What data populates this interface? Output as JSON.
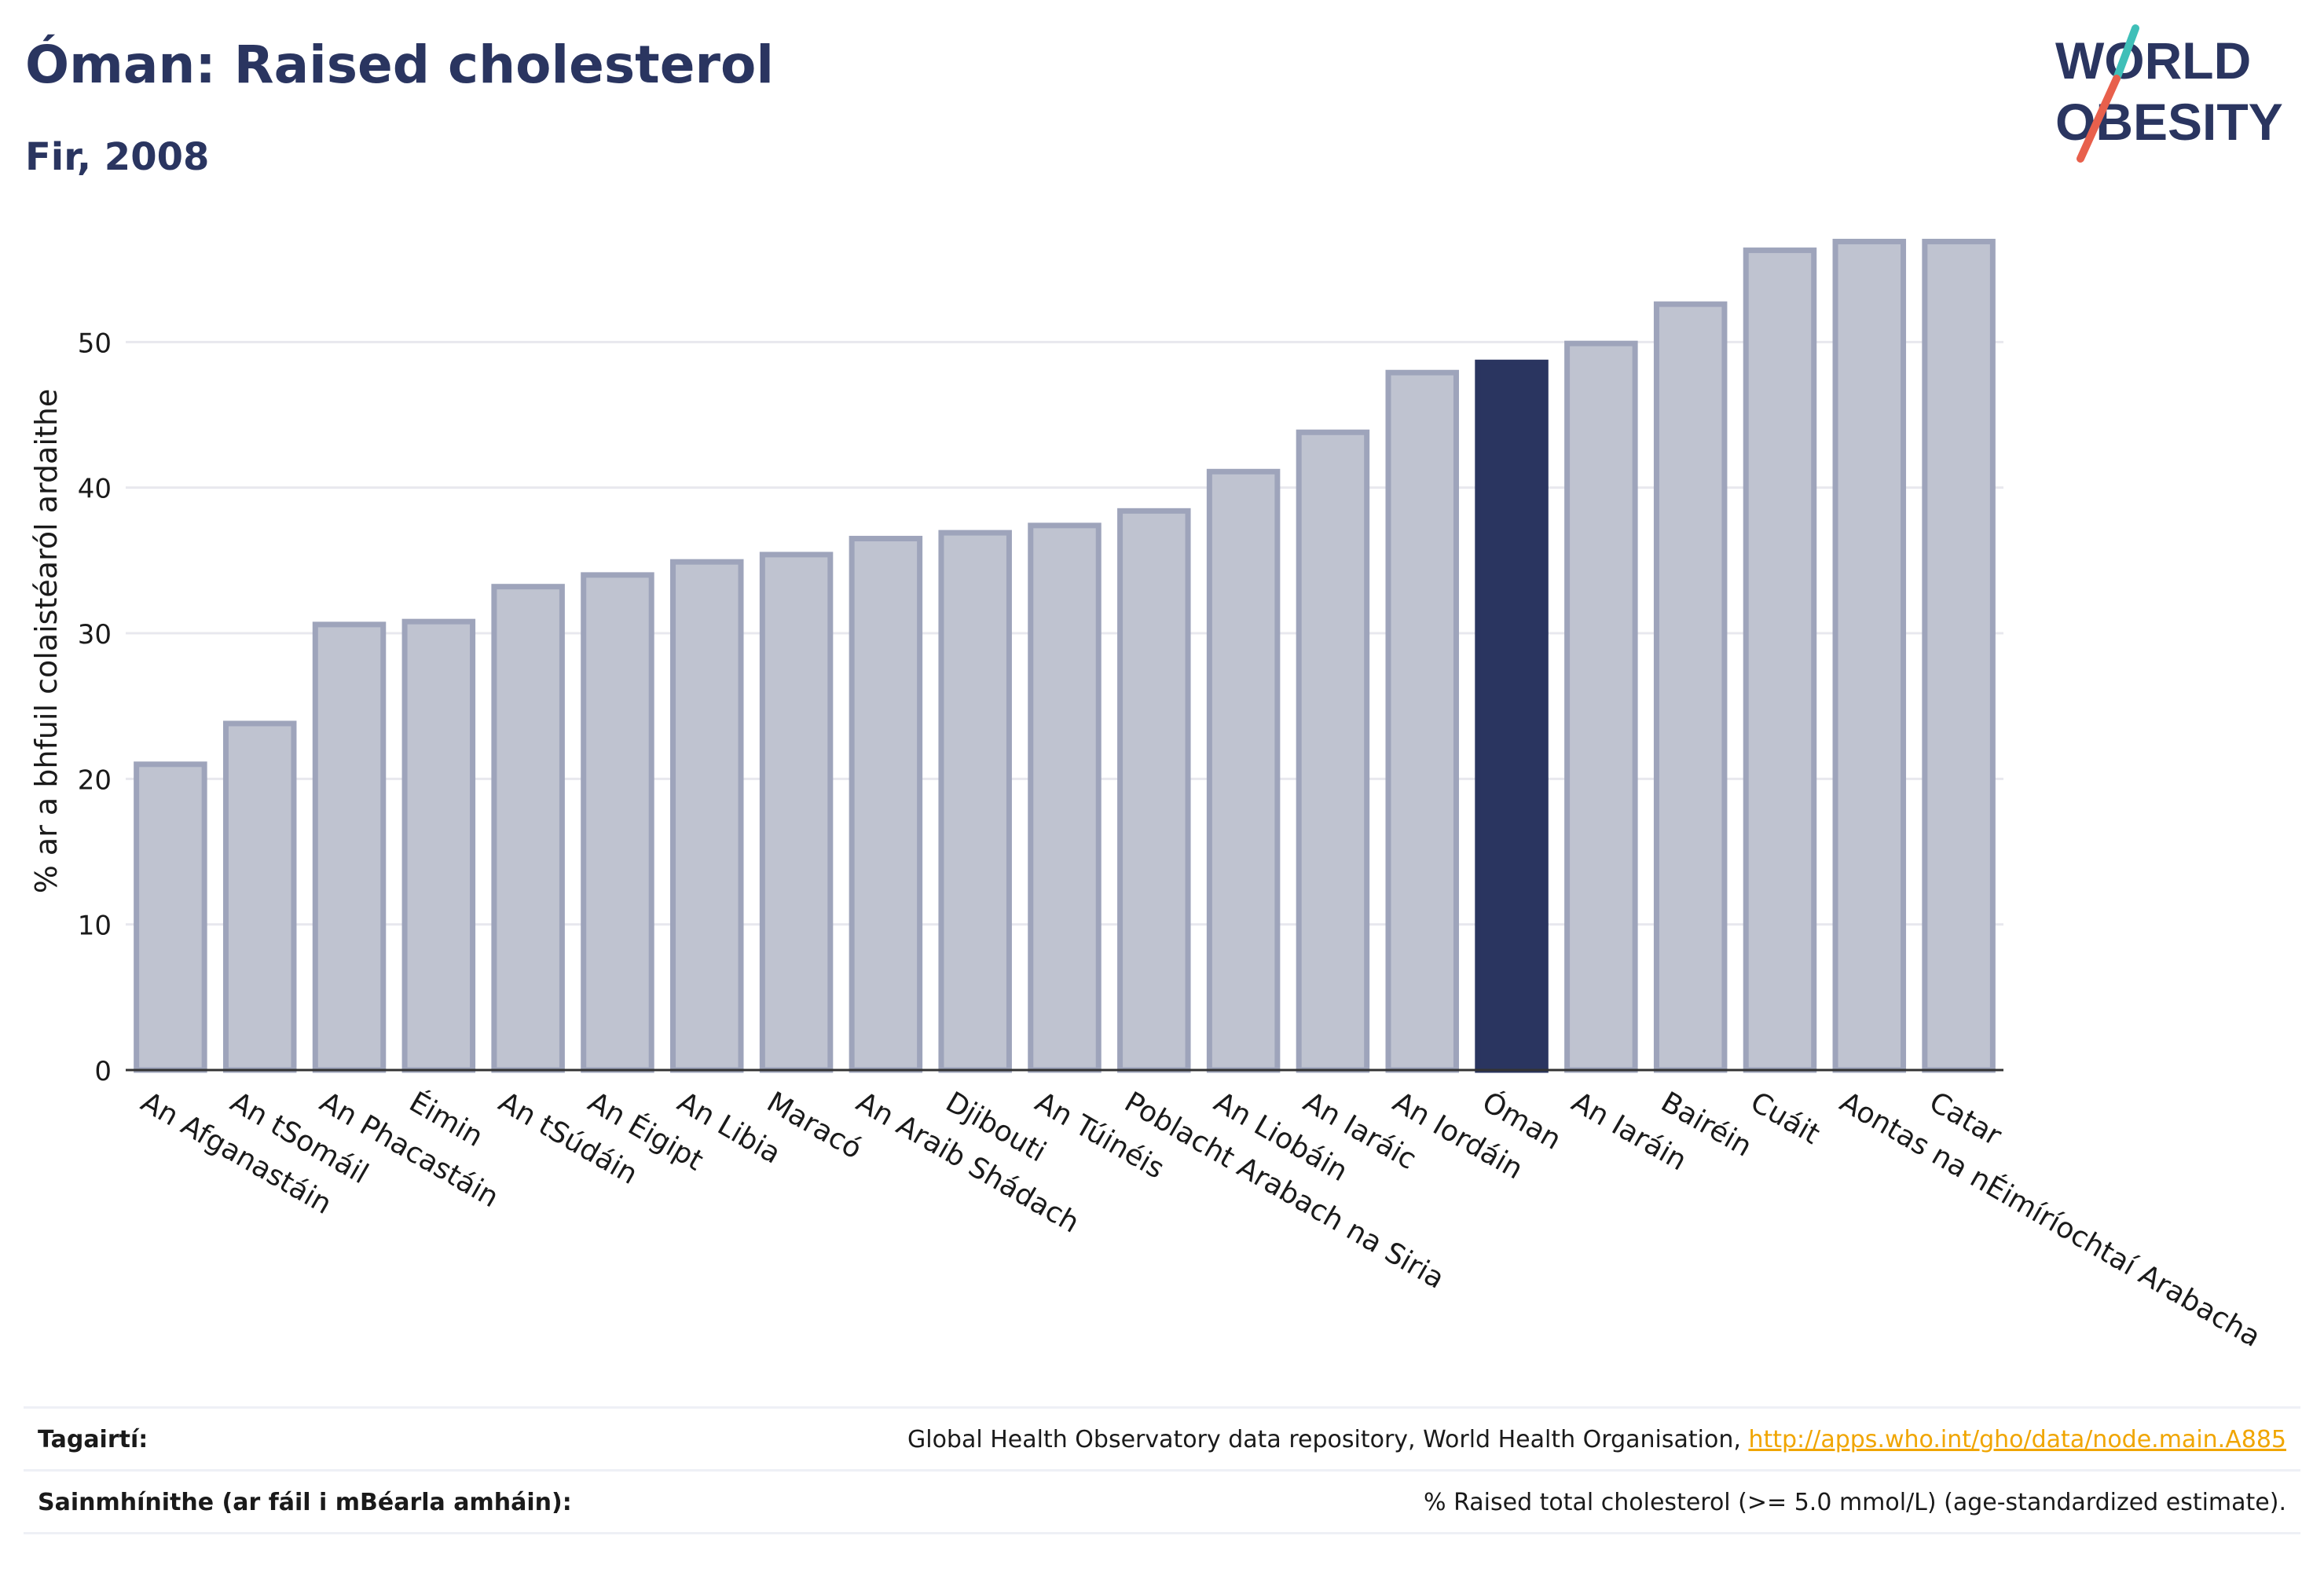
{
  "header": {
    "title": "Óman: Raised cholesterol",
    "subtitle": "Fir, 2008"
  },
  "logo": {
    "line1": "WORLD",
    "line2": "OBESITY",
    "accent_colors": [
      "#3fbfb8",
      "#e8604c"
    ]
  },
  "colors": {
    "bar": "#bfc3d0",
    "bar_stroke": "#9ea4bb",
    "highlight": "#2a3560",
    "grid": "#e8e8ee",
    "axis": "#333333"
  },
  "chart_data": {
    "type": "bar",
    "title": "Óman: Raised cholesterol",
    "subtitle": "Fir, 2008",
    "xlabel": "",
    "ylabel": "% ar a bhfuil colaistéaról ardaithe",
    "ylim": [
      0,
      60
    ],
    "yticks": [
      0,
      10,
      20,
      30,
      40,
      50
    ],
    "grid": true,
    "highlight": "Óman",
    "categories": [
      "An Afganastáin",
      "An tSomáil",
      "An Phacastáin",
      "Éimin",
      "An tSúdáin",
      "An Éigipt",
      "An Libia",
      "Maracó",
      "An Araib Shádach",
      "Djibouti",
      "An Túinéis",
      "Poblacht Arabach na Siria",
      "An Liobáin",
      "An Iaráic",
      "An Iordáin",
      "Óman",
      "An Iaráin",
      "Bairéin",
      "Cuáit",
      "Aontas na nÉimíríochtaí Arabacha",
      "Catar"
    ],
    "values": [
      21.0,
      23.8,
      30.6,
      30.8,
      33.2,
      34.0,
      34.9,
      35.4,
      36.5,
      36.9,
      37.4,
      38.4,
      41.1,
      43.8,
      47.9,
      48.6,
      49.9,
      52.6,
      56.3,
      56.9,
      56.9
    ]
  },
  "references": {
    "label": "Tagairtí:",
    "text": "Global Health Observatory data repository, World Health Organisation,",
    "link": "http://apps.who.int/gho/data/node.main.A885"
  },
  "definitions": {
    "label": "Sainmhínithe (ar fáil i mBéarla amháin):",
    "text": "% Raised total cholesterol (>= 5.0 mmol/L) (age-standardized estimate)."
  }
}
